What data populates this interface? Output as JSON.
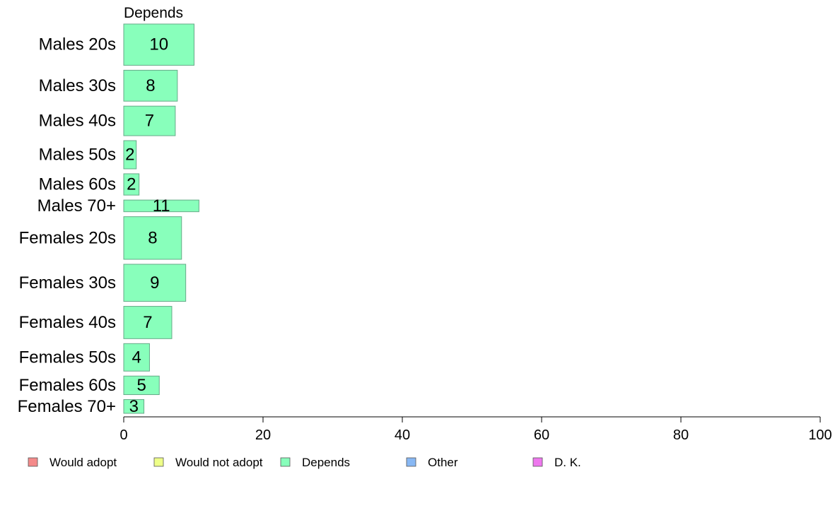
{
  "chart_data": {
    "type": "bar",
    "orientation": "horizontal",
    "stacked": true,
    "xlim": [
      0,
      100
    ],
    "x_ticks": [
      0,
      20,
      40,
      60,
      80,
      100
    ],
    "grid": false,
    "legend_position": "bottom",
    "column_header": "Depends",
    "categories": [
      "Males 20s",
      "Males 30s",
      "Males 40s",
      "Males 50s",
      "Males 60s",
      "Males 70+",
      "Females 20s",
      "Females 30s",
      "Females 40s",
      "Females 50s",
      "Females 60s",
      "Females 70+"
    ],
    "row_weights": [
      6.0,
      4.5,
      4.3,
      4.1,
      3.1,
      1.7,
      6.2,
      5.4,
      4.7,
      4.0,
      2.7,
      2.0
    ],
    "series": [
      {
        "name": "Would adopt",
        "color": "#f48a8a",
        "values": [
          0,
          0,
          0,
          0,
          0,
          0,
          0,
          0,
          0,
          0,
          0,
          0
        ]
      },
      {
        "name": "Would not adopt",
        "color": "#eeff88",
        "values": [
          0,
          0,
          0,
          0,
          0,
          0,
          0,
          0,
          0,
          0,
          0,
          0
        ]
      },
      {
        "name": "Depends",
        "color": "#88ffbb",
        "values": [
          10.1,
          7.7,
          7.4,
          1.8,
          2.2,
          10.8,
          8.3,
          8.9,
          6.9,
          3.7,
          5.1,
          2.9
        ],
        "labels": [
          "10",
          "8",
          "7",
          "2",
          "2",
          "11",
          "8",
          "9",
          "7",
          "4",
          "5",
          "3"
        ]
      },
      {
        "name": "Other",
        "color": "#88b8f4",
        "values": [
          0,
          0,
          0,
          0,
          0,
          0,
          0,
          0,
          0,
          0,
          0,
          0
        ]
      },
      {
        "name": "D. K.",
        "color": "#ee77ee",
        "values": [
          0,
          0,
          0,
          0,
          0,
          0,
          0,
          0,
          0,
          0,
          0,
          0
        ]
      }
    ]
  }
}
